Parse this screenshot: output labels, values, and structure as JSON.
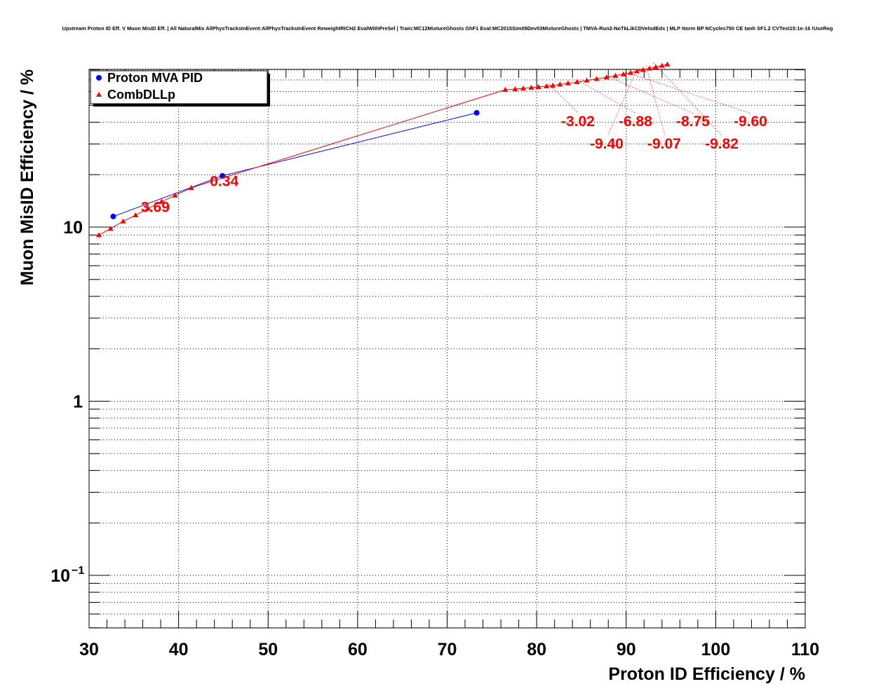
{
  "chart_data": {
    "type": "line",
    "title": "Upstream Proton ID Eff. V Muon MisID Eff. | All NaturalMix AllPhysTracksInEvent:AllPhysTracksInEvent ReweightRICH2 EvalWithPreSel | Train:MC12MixtureGhosts GhF1 Eval:MC2015Sim09Dev03MixtureGhosts | TMVA-Run2-NoTkLikCDVelodEdx | MLP Norm BP NCycles750 CE tanh SF1.2 CVTest15:1e-16 !UseReg",
    "xlabel": "Proton ID Efficiency / %",
    "ylabel": "Muon MisID Efficiency / %",
    "xlim": [
      30,
      110
    ],
    "ylim": [
      0.05,
      80
    ],
    "yscale": "log",
    "grid": true,
    "legend_position": "top-left",
    "x_ticks": [
      "30",
      "40",
      "50",
      "60",
      "70",
      "80",
      "90",
      "100",
      "110"
    ],
    "y_ticks": [
      {
        "value": 10,
        "label": "10"
      },
      {
        "value": 1,
        "label": "1"
      },
      {
        "value": 0.1,
        "label": "10",
        "exp": "−1"
      }
    ],
    "series": [
      {
        "name": "Proton MVA PID",
        "color": "#0000ff",
        "marker": "circle",
        "x": [
          32.7,
          44.9,
          73.3
        ],
        "y": [
          11.5,
          19.7,
          45.3
        ]
      },
      {
        "name": "CombDLLp",
        "color": "#ff0000",
        "marker": "triangle",
        "x": [
          31.1,
          32.4,
          33.8,
          35.2,
          36.6,
          38.1,
          39.6,
          41.4,
          76.5,
          77.6,
          78.5,
          79.4,
          80.2,
          81.1,
          81.8,
          82.6,
          83.5,
          84.5,
          85.6,
          86.7,
          87.8,
          88.8,
          89.7,
          90.5,
          91.2,
          91.9,
          92.6,
          93.3,
          94.0,
          94.6
        ],
        "y": [
          9.0,
          9.8,
          10.8,
          11.7,
          12.8,
          14.0,
          15.2,
          16.8,
          61.5,
          62.0,
          62.6,
          63.2,
          63.8,
          64.4,
          65.0,
          66.0,
          67.0,
          68.0,
          69.5,
          71.0,
          72.5,
          74.0,
          75.5,
          77.0,
          78.5,
          80.0,
          81.5,
          83.0,
          84.5,
          86.0
        ]
      }
    ],
    "annotations": [
      {
        "text": "3.69",
        "x": 35.8,
        "y": 12.2,
        "color": "#ff0000"
      },
      {
        "text": "0.34",
        "x": 43.5,
        "y": 17.2,
        "color": "#ff0000"
      },
      {
        "text": "-3.02",
        "x": 81.3,
        "y": 66.5,
        "color": "#ff0000"
      },
      {
        "text": "-6.88",
        "x": 84.6,
        "y": 69.5,
        "color": "#ff0000"
      },
      {
        "text": "-8.75",
        "x": 88.1,
        "y": 72.5,
        "color": "#ff0000"
      },
      {
        "text": "-9.60",
        "x": 90.3,
        "y": 76.5,
        "color": "#ff0000"
      },
      {
        "text": "-9.40",
        "x": 91.2,
        "y": 80.5,
        "color": "#ff0000"
      },
      {
        "text": "-9.07",
        "x": 92.2,
        "y": 84.5,
        "color": "#ff0000"
      },
      {
        "text": "-9.82",
        "x": 93.0,
        "y": 88.0,
        "color": "#ff0000"
      }
    ]
  }
}
